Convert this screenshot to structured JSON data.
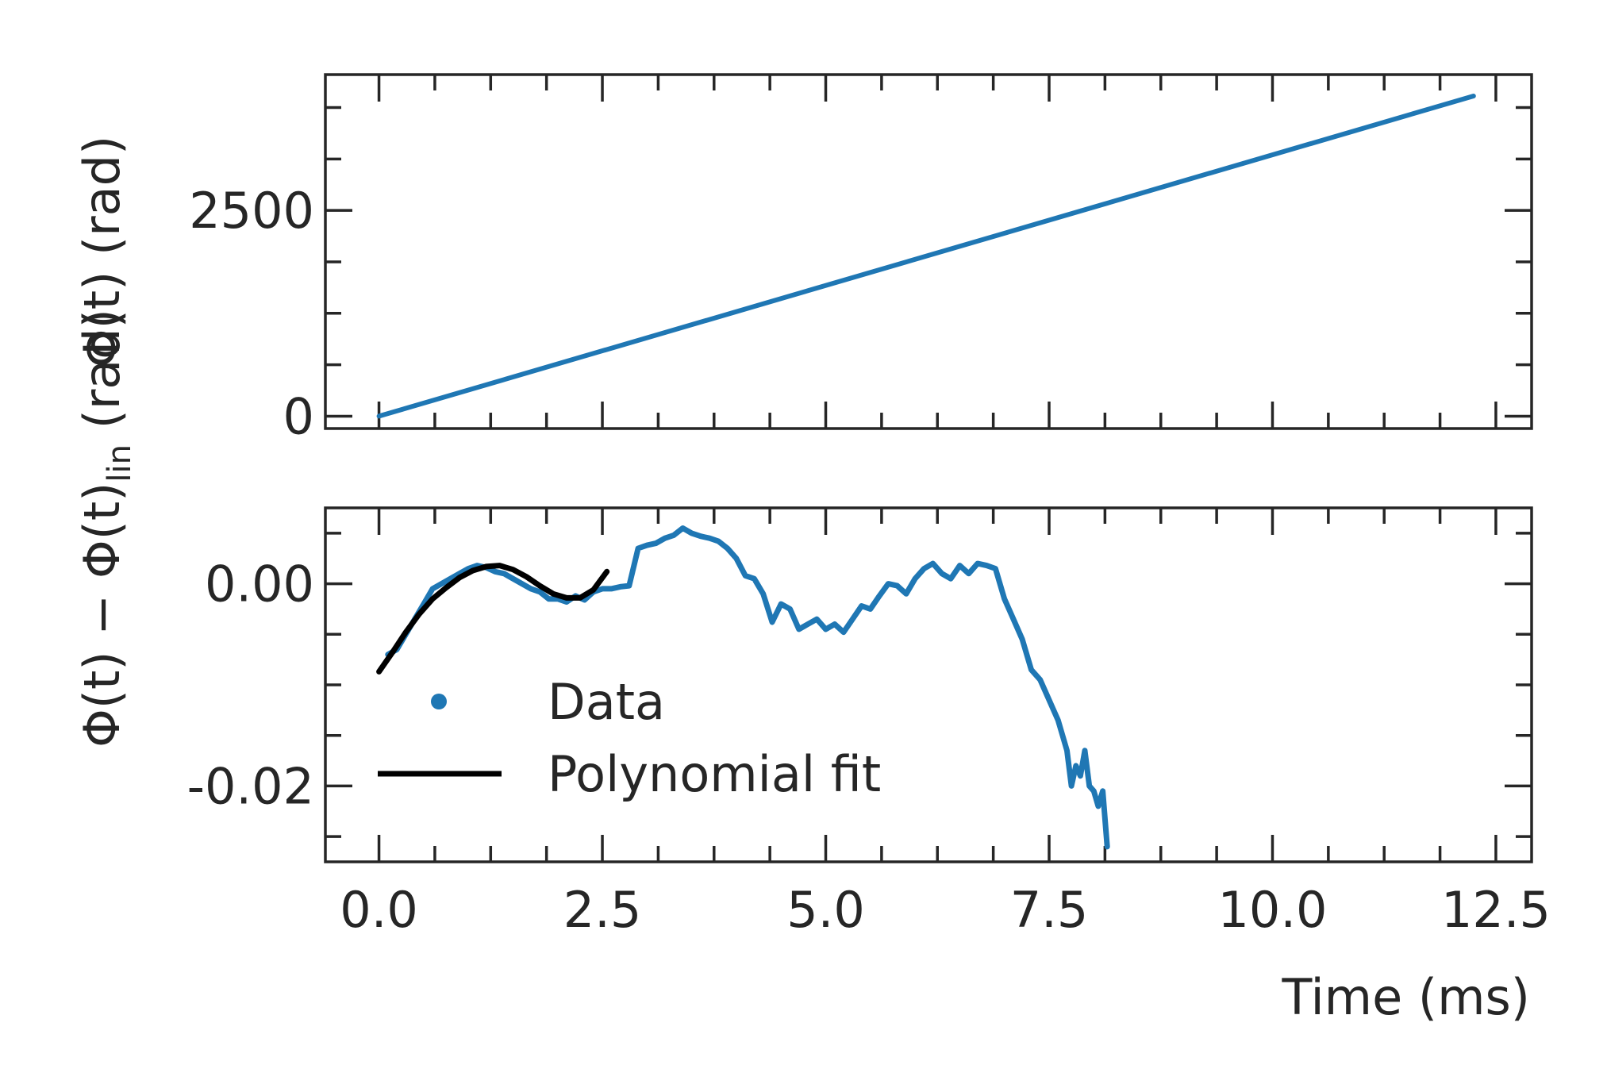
{
  "chart_data": [
    {
      "type": "line",
      "panel": "top",
      "ylabel": "Φ(t) (rad)",
      "xlabel": "",
      "xlim": [
        -0.6,
        12.9
      ],
      "ylim": [
        -150,
        4150
      ],
      "x_major_ticks": [
        0.0,
        2.5,
        5.0,
        7.5,
        10.0,
        12.5
      ],
      "x_minor_ticks": [
        0.625,
        1.25,
        1.875,
        3.125,
        3.75,
        4.375,
        5.625,
        6.25,
        6.875,
        8.125,
        8.75,
        9.375,
        10.625,
        11.25,
        11.875
      ],
      "y_major_ticks": [
        0,
        2500
      ],
      "y_minor_ticks": [
        625,
        1250,
        1875,
        3125,
        3750
      ],
      "y_tick_labels": [
        "0",
        "2500"
      ],
      "series": [
        {
          "name": "Φ(t)",
          "color": "#1f77b4",
          "x": [
            0.0,
            12.25
          ],
          "y": [
            0,
            3890
          ]
        }
      ]
    },
    {
      "type": "line",
      "panel": "bottom",
      "ylabel": "Φ(t) − Φ(t)",
      "ylabel_sub": "lin",
      "ylabel_suffix": " (rad)",
      "xlabel": "Time (ms)",
      "xlim": [
        -0.6,
        12.9
      ],
      "ylim": [
        -0.0275,
        0.0075
      ],
      "x_major_ticks": [
        0.0,
        2.5,
        5.0,
        7.5,
        10.0,
        12.5
      ],
      "x_tick_labels": [
        "0.0",
        "2.5",
        "5.0",
        "7.5",
        "10.0",
        "12.5"
      ],
      "x_minor_ticks": [
        0.625,
        1.25,
        1.875,
        3.125,
        3.75,
        4.375,
        5.625,
        6.25,
        6.875,
        8.125,
        8.75,
        9.375,
        10.625,
        11.25,
        11.875
      ],
      "y_major_ticks": [
        0.0,
        -0.02
      ],
      "y_tick_labels": [
        "0.00",
        "-0.02"
      ],
      "y_minor_ticks": [
        0.005,
        -0.005,
        -0.01,
        -0.015,
        -0.025
      ],
      "legend": {
        "placement": "lower-left",
        "entries": [
          {
            "label": "Data",
            "marker": "dot",
            "color": "#1f77b4"
          },
          {
            "label": "Polynomial fit",
            "marker": "line",
            "color": "#000000"
          }
        ]
      },
      "series": [
        {
          "name": "Data",
          "color": "#1f77b4",
          "x": [
            0.1,
            0.2,
            0.3,
            0.4,
            0.5,
            0.6,
            0.7,
            0.8,
            0.9,
            1.0,
            1.1,
            1.2,
            1.3,
            1.4,
            1.5,
            1.6,
            1.7,
            1.8,
            1.9,
            2.0,
            2.1,
            2.2,
            2.3,
            2.4,
            2.5,
            2.6,
            2.7,
            2.8,
            2.9,
            3.0,
            3.1,
            3.2,
            3.3,
            3.4,
            3.5,
            3.6,
            3.7,
            3.8,
            3.9,
            4.0,
            4.1,
            4.2,
            4.3,
            4.4,
            4.5,
            4.6,
            4.7,
            4.8,
            4.9,
            5.0,
            5.1,
            5.2,
            5.3,
            5.4,
            5.5,
            5.6,
            5.7,
            5.8,
            5.9,
            6.0,
            6.1,
            6.2,
            6.3,
            6.4,
            6.5,
            6.6,
            6.7,
            6.8,
            6.9,
            7.0,
            7.1,
            7.2,
            7.3,
            7.4,
            7.5,
            7.6,
            7.65,
            7.7,
            7.75,
            7.8,
            7.85,
            7.9,
            7.95,
            8.0,
            8.05,
            8.1,
            8.15
          ],
          "y": [
            -0.007,
            -0.0065,
            -0.005,
            -0.0035,
            -0.002,
            -0.0005,
            0.0,
            0.0005,
            0.001,
            0.0015,
            0.0018,
            0.0016,
            0.0012,
            0.001,
            0.0005,
            0.0,
            -0.0005,
            -0.0008,
            -0.0015,
            -0.0015,
            -0.0018,
            -0.0012,
            -0.0016,
            -0.0008,
            -0.0005,
            -0.0005,
            -0.0003,
            -0.0002,
            0.0035,
            0.0038,
            0.004,
            0.0045,
            0.0048,
            0.0055,
            0.005,
            0.0047,
            0.0045,
            0.0042,
            0.0035,
            0.0025,
            0.0008,
            0.0005,
            -0.001,
            -0.0038,
            -0.002,
            -0.0025,
            -0.0045,
            -0.004,
            -0.0035,
            -0.0045,
            -0.004,
            -0.0048,
            -0.0035,
            -0.0022,
            -0.0025,
            -0.0012,
            0.0,
            -0.0002,
            -0.001,
            0.0005,
            0.0015,
            0.002,
            0.001,
            0.0005,
            0.0018,
            0.001,
            0.002,
            0.0018,
            0.0015,
            -0.0015,
            -0.0035,
            -0.0055,
            -0.0085,
            -0.0095,
            -0.0115,
            -0.0135,
            -0.015,
            -0.0165,
            -0.02,
            -0.018,
            -0.019,
            -0.0165,
            -0.02,
            -0.0205,
            -0.022,
            -0.0205,
            -0.026
          ]
        },
        {
          "name": "Polynomial fit",
          "color": "#000000",
          "x": [
            0.0,
            0.15,
            0.3,
            0.45,
            0.6,
            0.75,
            0.9,
            1.05,
            1.2,
            1.35,
            1.5,
            1.65,
            1.8,
            1.95,
            2.1,
            2.25,
            2.4,
            2.55
          ],
          "y": [
            -0.0087,
            -0.0068,
            -0.0048,
            -0.003,
            -0.0015,
            -0.0004,
            0.0006,
            0.0013,
            0.0017,
            0.0018,
            0.0014,
            0.0007,
            -0.0002,
            -0.001,
            -0.0014,
            -0.0014,
            -0.0006,
            0.0012
          ]
        }
      ]
    }
  ]
}
